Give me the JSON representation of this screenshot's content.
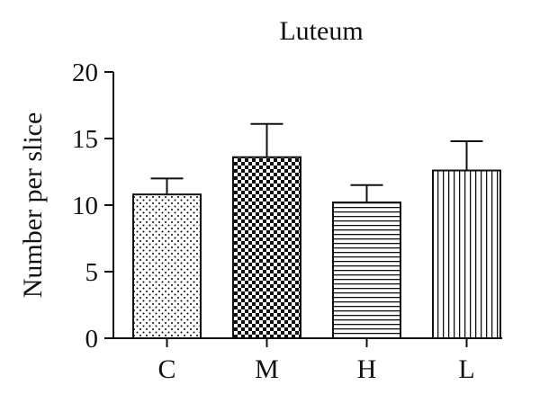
{
  "chart_data": {
    "type": "bar",
    "title": "Luteum",
    "ylabel": "Number per slice",
    "xlabel": "",
    "categories": [
      "C",
      "M",
      "H",
      "L"
    ],
    "values": [
      10.8,
      13.6,
      10.2,
      12.6
    ],
    "error_upper": [
      1.2,
      2.5,
      1.3,
      2.2
    ],
    "ylim": [
      0,
      20
    ],
    "yticks": [
      0,
      5,
      10,
      15,
      20
    ],
    "grid": false,
    "patterns": [
      "dots",
      "checker",
      "horizontal-lines",
      "vertical-lines"
    ]
  }
}
